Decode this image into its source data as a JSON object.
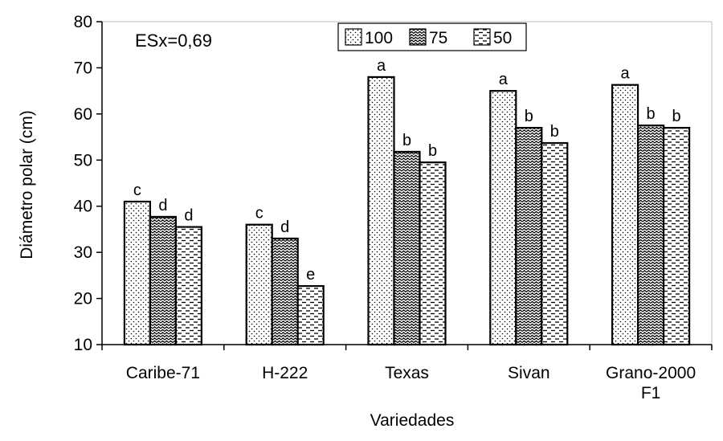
{
  "chart_data": {
    "type": "bar",
    "categories": [
      "Caribe-71",
      "H-222",
      "Texas",
      "Sivan",
      "Grano-2000\nF1"
    ],
    "series": [
      {
        "name": "100",
        "pattern": "dots",
        "values": [
          41,
          36,
          68,
          65,
          66.3
        ],
        "letters": [
          "c",
          "c",
          "a",
          "a",
          "a"
        ]
      },
      {
        "name": "75",
        "pattern": "waves",
        "values": [
          37.7,
          33,
          51.8,
          57,
          57.5
        ],
        "letters": [
          "d",
          "d",
          "b",
          "b",
          "b"
        ]
      },
      {
        "name": "50",
        "pattern": "dashes",
        "values": [
          35.5,
          22.7,
          49.5,
          53.7,
          57
        ],
        "letters": [
          "d",
          "e",
          "b",
          "b",
          "b"
        ]
      }
    ],
    "ylim": [
      10,
      80
    ],
    "yticks": [
      10,
      20,
      30,
      40,
      50,
      60,
      70,
      80
    ],
    "xlabel": "Variedades",
    "ylabel": "Diámetro polar (cm)",
    "annotation": "ESx=0,69",
    "legend_position": "top-center",
    "grid": false,
    "colors": {
      "bar_fill": "#ffffff",
      "bar_stroke": "#000000",
      "pattern": "#000000"
    }
  }
}
